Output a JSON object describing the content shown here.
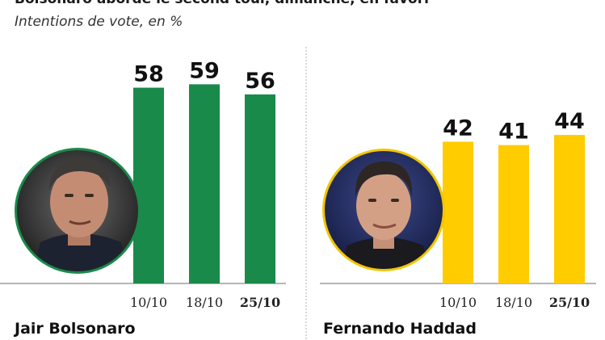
{
  "header": {
    "title": "Bolsonaro aborde le second tour, dimanche, en favori",
    "subtitle": "Intentions de vote, en %"
  },
  "chart_data": [
    {
      "type": "bar",
      "series_name": "Jair Bolsonaro",
      "color": "#1a8a4a",
      "photo_ring_color": "#1a8a4a",
      "icon": "portrait-bolsonaro",
      "categories": [
        "10/10",
        "18/10",
        "25/10"
      ],
      "highlight_category": "25/10",
      "values": [
        58,
        59,
        56
      ]
    },
    {
      "type": "bar",
      "series_name": "Fernando Haddad",
      "color": "#ffcc00",
      "photo_ring_color": "#f2c500",
      "icon": "portrait-haddad",
      "categories": [
        "10/10",
        "18/10",
        "25/10"
      ],
      "highlight_category": "25/10",
      "values": [
        42,
        41,
        44
      ]
    }
  ]
}
